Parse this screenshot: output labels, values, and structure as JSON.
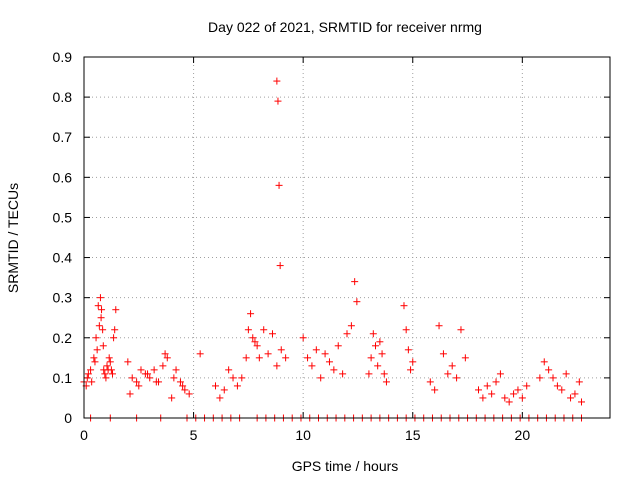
{
  "chart_data": {
    "type": "scatter",
    "title": "Day 022 of 2021, SRMTID for receiver nrmg",
    "xlabel": "GPS time / hours",
    "ylabel": "SRMTID / TECUs",
    "xlim": [
      0,
      24
    ],
    "ylim": [
      0,
      0.9
    ],
    "xticks": [
      0,
      5,
      10,
      15,
      20
    ],
    "xtick_labels": [
      "0",
      "5",
      "10",
      "15",
      "20"
    ],
    "yticks": [
      0,
      0.1,
      0.2,
      0.3,
      0.4,
      0.5,
      0.6,
      0.7,
      0.8,
      0.9
    ],
    "ytick_labels": [
      "0",
      "0.1",
      "0.2",
      "0.3",
      "0.4",
      "0.5",
      "0.6",
      "0.7",
      "0.8",
      "0.9"
    ],
    "grid": true,
    "marker": "+",
    "series": [
      {
        "name": "SRMTID",
        "color": "#ff0000",
        "x": [
          0.0,
          0.15,
          0.3,
          0.45,
          0.55,
          0.65,
          0.75,
          0.8,
          0.85,
          0.9,
          0.95,
          1.05,
          1.15,
          1.25,
          1.35,
          1.45,
          0.1,
          0.2,
          0.35,
          0.5,
          0.6,
          0.7,
          0.78,
          0.88,
          1.0,
          1.1,
          1.2,
          1.3,
          1.4,
          2.0,
          2.2,
          2.4,
          2.6,
          2.8,
          3.0,
          3.2,
          3.4,
          3.6,
          3.8,
          2.1,
          2.5,
          2.9,
          3.3,
          3.7,
          4.0,
          4.2,
          4.4,
          4.6,
          4.8,
          4.1,
          4.5,
          5.3,
          6.0,
          6.2,
          6.4,
          6.6,
          6.8,
          7.0,
          7.2,
          7.4,
          7.5,
          7.6,
          7.7,
          7.8,
          7.9,
          8.0,
          8.2,
          8.4,
          8.6,
          8.8,
          9.0,
          9.2,
          8.8,
          8.85,
          8.9,
          8.95,
          10.0,
          10.2,
          10.4,
          10.6,
          10.8,
          11.0,
          11.2,
          11.4,
          11.6,
          11.8,
          12.0,
          12.2,
          12.35,
          12.45,
          13.0,
          13.1,
          13.2,
          13.3,
          13.4,
          13.5,
          13.6,
          13.7,
          13.8,
          14.6,
          14.7,
          14.8,
          14.9,
          15.0,
          15.8,
          16.0,
          16.2,
          16.4,
          16.6,
          16.8,
          17.0,
          17.2,
          17.4,
          18.0,
          18.2,
          18.4,
          18.6,
          18.8,
          19.0,
          19.2,
          19.4,
          19.6,
          19.8,
          20.0,
          20.2,
          20.8,
          21.0,
          21.2,
          21.4,
          21.6,
          21.8,
          22.0,
          22.2,
          22.4,
          22.6,
          22.7,
          0.3,
          1.2,
          2.4,
          3.5,
          4.7,
          5.1,
          5.5,
          5.9,
          6.3,
          6.7,
          7.1,
          7.9,
          8.3,
          8.7,
          9.1,
          9.5,
          9.9,
          10.3,
          10.7,
          11.1,
          11.5,
          11.9,
          12.3,
          12.7,
          13.1,
          13.5,
          13.9,
          14.3,
          14.7,
          15.1,
          15.5,
          15.9,
          16.3,
          16.7,
          17.1,
          17.5,
          17.9,
          18.3,
          18.7,
          19.1,
          19.5,
          19.9,
          20.3,
          20.7,
          21.1,
          21.5,
          21.9,
          22.3,
          22.7
        ],
        "y": [
          0.09,
          0.1,
          0.12,
          0.15,
          0.2,
          0.28,
          0.3,
          0.27,
          0.22,
          0.12,
          0.11,
          0.13,
          0.15,
          0.12,
          0.2,
          0.27,
          0.08,
          0.11,
          0.09,
          0.14,
          0.17,
          0.23,
          0.25,
          0.18,
          0.1,
          0.12,
          0.14,
          0.11,
          0.22,
          0.14,
          0.1,
          0.09,
          0.12,
          0.11,
          0.1,
          0.12,
          0.09,
          0.13,
          0.15,
          0.06,
          0.08,
          0.11,
          0.09,
          0.16,
          0.05,
          0.12,
          0.09,
          0.07,
          0.06,
          0.1,
          0.08,
          0.16,
          0.08,
          0.05,
          0.07,
          0.12,
          0.1,
          0.08,
          0.1,
          0.15,
          0.22,
          0.26,
          0.2,
          0.19,
          0.18,
          0.15,
          0.22,
          0.16,
          0.21,
          0.13,
          0.17,
          0.15,
          0.84,
          0.79,
          0.58,
          0.38,
          0.2,
          0.15,
          0.13,
          0.17,
          0.1,
          0.16,
          0.14,
          0.12,
          0.18,
          0.11,
          0.21,
          0.23,
          0.34,
          0.29,
          0.11,
          0.15,
          0.21,
          0.18,
          0.13,
          0.19,
          0.16,
          0.11,
          0.09,
          0.28,
          0.22,
          0.17,
          0.12,
          0.14,
          0.09,
          0.07,
          0.23,
          0.16,
          0.11,
          0.13,
          0.1,
          0.22,
          0.15,
          0.07,
          0.05,
          0.08,
          0.06,
          0.09,
          0.11,
          0.05,
          0.04,
          0.06,
          0.07,
          0.05,
          0.08,
          0.1,
          0.14,
          0.12,
          0.1,
          0.08,
          0.07,
          0.11,
          0.05,
          0.06,
          0.09,
          0.04,
          0.0,
          0.0,
          0.0,
          0.0,
          0.0,
          0.0,
          0.0,
          0.0,
          0.0,
          0.0,
          0.0,
          0.0,
          0.0,
          0.0,
          0.0,
          0.0,
          0.0,
          0.0,
          0.0,
          0.0,
          0.0,
          0.0,
          0.0,
          0.0,
          0.0,
          0.0,
          0.0,
          0.0,
          0.0,
          0.0,
          0.0,
          0.0,
          0.0,
          0.0,
          0.0,
          0.0,
          0.0,
          0.0,
          0.0,
          0.0,
          0.0,
          0.0,
          0.0,
          0.0,
          0.0,
          0.0,
          0.0,
          0.0,
          0.0
        ]
      }
    ]
  }
}
